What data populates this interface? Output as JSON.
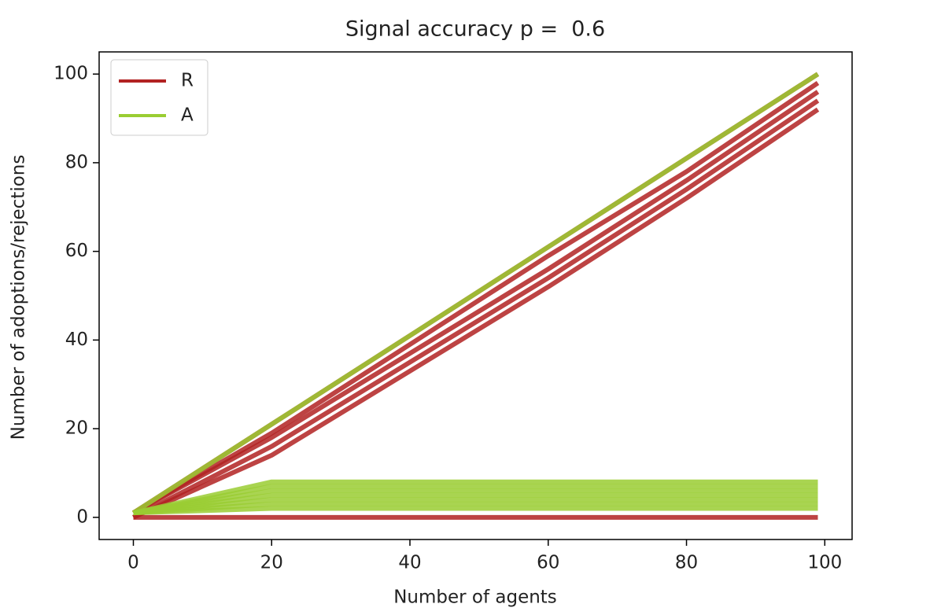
{
  "chart_data": {
    "type": "line",
    "title": "Signal accuracy p =  0.6",
    "xlabel": "Number of agents",
    "ylabel": "Number of adoptions/rejections",
    "x": [
      0,
      20,
      40,
      60,
      80,
      99
    ],
    "series": [
      {
        "name": "R",
        "color": "#b22222",
        "runs": [
          [
            1,
            21,
            41,
            61,
            81,
            100
          ],
          [
            1,
            19,
            39,
            59,
            78,
            98
          ],
          [
            1,
            18,
            37,
            56,
            76,
            96
          ],
          [
            0,
            16,
            35,
            54,
            74,
            94
          ],
          [
            0,
            14,
            33,
            52,
            72,
            92
          ],
          [
            0,
            0,
            0,
            0,
            0,
            0
          ]
        ]
      },
      {
        "name": "A",
        "color": "#9acd32",
        "runs": [
          [
            1,
            21,
            41,
            61,
            81,
            100
          ],
          [
            1,
            8,
            8,
            8,
            8,
            8
          ],
          [
            1,
            7,
            7,
            7,
            7,
            7
          ],
          [
            1,
            6,
            6,
            6,
            6,
            6
          ],
          [
            1,
            5,
            5,
            5,
            5,
            5
          ],
          [
            1,
            4,
            4,
            4,
            4,
            4
          ],
          [
            1,
            3,
            3,
            3,
            3,
            3
          ],
          [
            1,
            2,
            2,
            2,
            2,
            2
          ]
        ]
      }
    ],
    "xlim": [
      -4.95,
      103.95
    ],
    "xticks": [
      0,
      20,
      40,
      60,
      80,
      100
    ],
    "ylim": [
      -5,
      105
    ],
    "yticks": [
      0,
      20,
      40,
      60,
      80,
      100
    ],
    "legend": "upper left"
  }
}
